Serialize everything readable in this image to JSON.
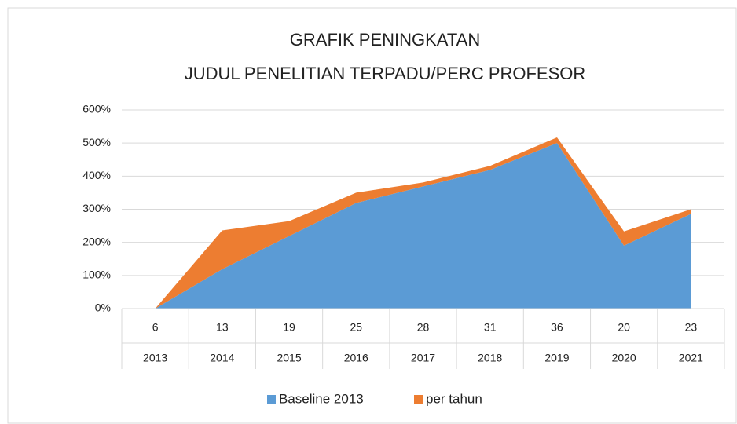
{
  "chart_data": {
    "type": "stacked_area",
    "title": [
      "GRAFIK PENINGKATAN",
      "JUDUL PENELITIAN TERPADU/PERC PROFESOR"
    ],
    "categories": [
      "2013",
      "2014",
      "2015",
      "2016",
      "2017",
      "2018",
      "2019",
      "2020",
      "2021"
    ],
    "counts": [
      6,
      13,
      19,
      25,
      28,
      31,
      36,
      20,
      23
    ],
    "series": [
      {
        "name": "Baseline 2013",
        "color": "#5b9bd5",
        "values": [
          0,
          119,
          219,
          319,
          369,
          419,
          500,
          190,
          286
        ]
      },
      {
        "name": "per tahun",
        "color": "#ed7d31",
        "values": [
          0,
          117,
          45,
          31,
          12,
          12,
          17,
          43,
          14
        ]
      }
    ],
    "ylim": [
      0,
      600
    ],
    "yticks": [
      {
        "value": 0,
        "label": "0%"
      },
      {
        "value": 100,
        "label": "100%"
      },
      {
        "value": 200,
        "label": "200%"
      },
      {
        "value": 300,
        "label": "300%"
      },
      {
        "value": 400,
        "label": "400%"
      },
      {
        "value": 500,
        "label": "500%"
      },
      {
        "value": 600,
        "label": "600%"
      }
    ],
    "grid": true,
    "legend": "bottom"
  }
}
